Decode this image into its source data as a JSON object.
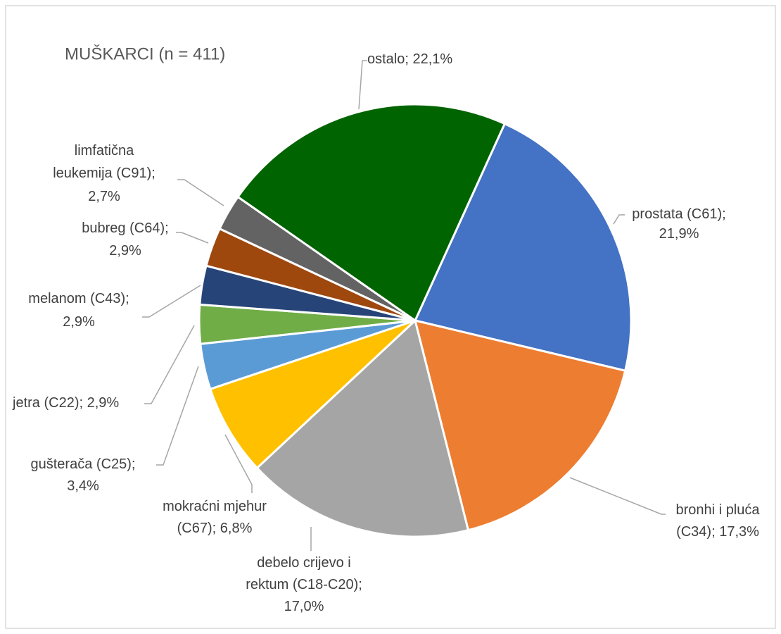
{
  "chart_data": {
    "type": "pie",
    "title": "MUŠKARCI (n = 411)",
    "categories": [
      "prostata (C61)",
      "bronhi i pluća (C34)",
      "debelo crijevo i rektum (C18-C20)",
      "mokraćni mjehur (C67)",
      "gušterača (C25)",
      "jetra (C22)",
      "melanom (C43)",
      "bubreg (C64)",
      "limfatična leukemija (C91)",
      "ostalo"
    ],
    "values": [
      21.9,
      17.3,
      17.0,
      6.8,
      3.4,
      2.9,
      2.9,
      2.9,
      2.7,
      22.1
    ],
    "value_labels": [
      "21,9%",
      "17,3%",
      "17,0%",
      "6,8%",
      "3,4%",
      "2,9%",
      "2,9%",
      "2,9%",
      "2,7%",
      "22,1%"
    ],
    "label_separator": ";",
    "colors": [
      "#4472c4",
      "#ed7d31",
      "#a5a5a5",
      "#ffc000",
      "#5b9bd5",
      "#70ad47",
      "#264478",
      "#9e480e",
      "#636363",
      "#006400"
    ]
  }
}
